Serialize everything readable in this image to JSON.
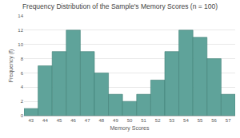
{
  "chart_data": {
    "type": "bar",
    "title": "Frequency Distribution of the Sample's Memory Scores (n = 100)",
    "x_label": "Memory Scores",
    "y_label": "Frequency (f)",
    "categories": [
      "43",
      "44",
      "45",
      "46",
      "47",
      "48",
      "49",
      "50",
      "51",
      "52",
      "53",
      "54",
      "55",
      "56",
      "57"
    ],
    "values": [
      1,
      7,
      9,
      12,
      9,
      6,
      3,
      2,
      3,
      5,
      9,
      12,
      11,
      8,
      3
    ],
    "color": "#5fa39a",
    "ylim": [
      0,
      14
    ],
    "yticks": [
      0,
      2,
      4,
      6,
      8,
      10,
      12,
      14
    ],
    "grid": true
  }
}
